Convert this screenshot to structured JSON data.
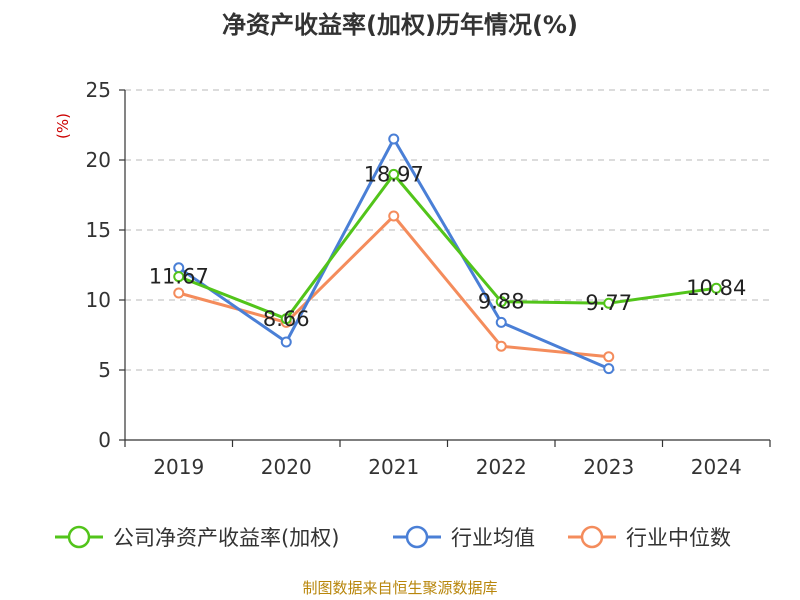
{
  "chart_data": {
    "type": "line",
    "title": "净资产收益率(加权)历年情况(%)",
    "ylabel": "(%)",
    "xlabel": "",
    "categories": [
      "2019",
      "2020",
      "2021",
      "2022",
      "2023",
      "2024"
    ],
    "ylim": [
      0,
      25
    ],
    "yticks": [
      0,
      5,
      10,
      15,
      20,
      25
    ],
    "grid": true,
    "legend_position": "bottom",
    "series": [
      {
        "name": "公司净资产收益率(加权)",
        "color": "#52c41a",
        "values": [
          11.67,
          8.66,
          18.97,
          9.88,
          9.77,
          10.84
        ],
        "labels": [
          "11.67",
          "8.66",
          "18.97",
          "9.88",
          "9.77",
          "10.84"
        ]
      },
      {
        "name": "行业均值",
        "color": "#4a7fd6",
        "values": [
          12.3,
          7.0,
          21.5,
          8.4,
          5.1,
          null
        ]
      },
      {
        "name": "行业中位数",
        "color": "#f48c5c",
        "values": [
          10.5,
          8.4,
          16.0,
          6.7,
          5.95,
          null
        ]
      }
    ]
  },
  "source": "制图数据来自恒生聚源数据库"
}
